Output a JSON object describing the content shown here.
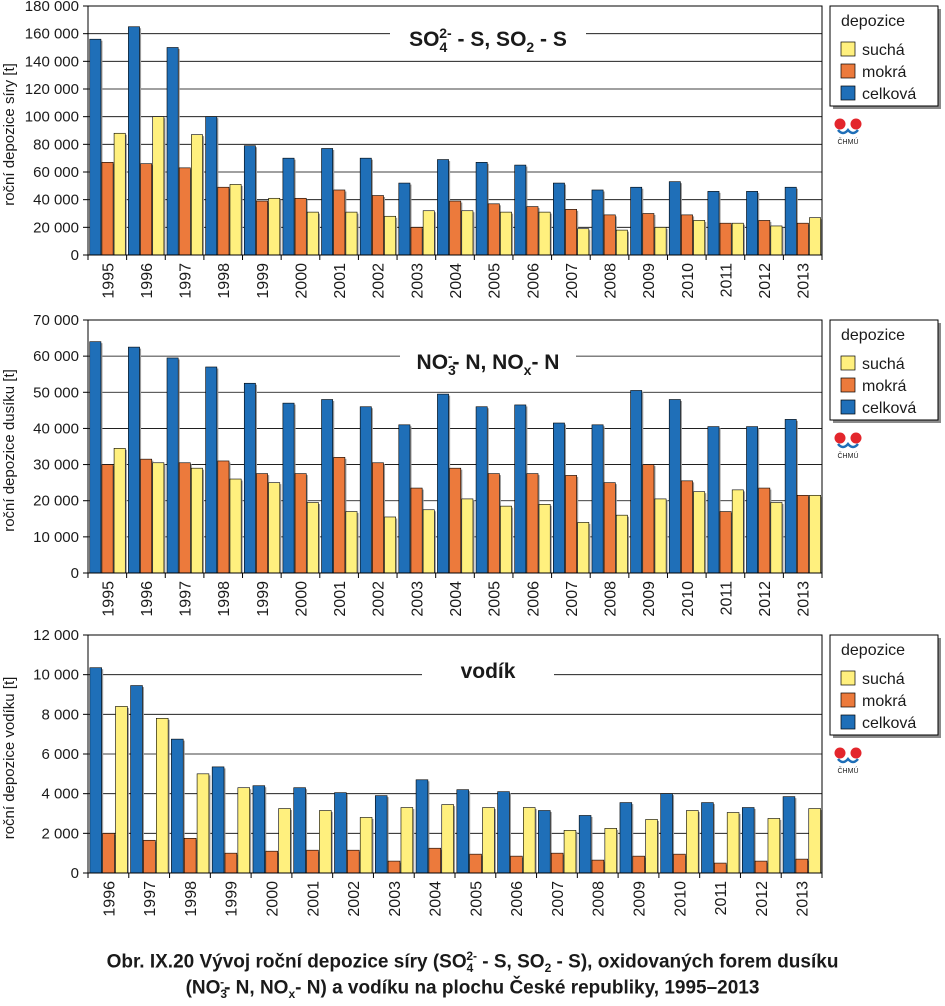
{
  "chart_data": [
    {
      "type": "bar",
      "title_main": "SO",
      "title_sub": "4",
      "title_sup": "2-",
      "title_rest": " - S, SO",
      "title_sub2": "2",
      "title_end": " - S",
      "ylabel": "roční depozice síry [t]",
      "ylim": [
        0,
        180000
      ],
      "yticks": [
        0,
        20000,
        40000,
        60000,
        80000,
        100000,
        120000,
        140000,
        160000,
        180000
      ],
      "ytick_labels": [
        "0",
        "20 000",
        "40 000",
        "60 000",
        "80 000",
        "100 000",
        "120 000",
        "140 000",
        "160 000",
        "180 000"
      ],
      "grid": true,
      "legend_position": "right",
      "legend_title": "depozice",
      "categories": [
        "1995",
        "1996",
        "1997",
        "1998",
        "1999",
        "2000",
        "2001",
        "2002",
        "2003",
        "2004",
        "2005",
        "2006",
        "2007",
        "2008",
        "2009",
        "2010",
        "2011",
        "2012",
        "2013"
      ],
      "series": [
        {
          "name": "celková",
          "color": "#1f6fb8",
          "values": [
            156000,
            165000,
            150000,
            100000,
            79000,
            70000,
            77000,
            70000,
            52000,
            69000,
            67000,
            65000,
            52000,
            47000,
            49000,
            53000,
            46000,
            46000,
            49000
          ]
        },
        {
          "name": "mokrá",
          "color": "#ec7a3c",
          "values": [
            67000,
            66000,
            63000,
            49000,
            39000,
            41000,
            47000,
            43000,
            20000,
            39000,
            37000,
            35000,
            33000,
            29000,
            30000,
            29000,
            23000,
            25000,
            23000
          ]
        },
        {
          "name": "suchá",
          "color": "#fff07e",
          "values": [
            88000,
            100000,
            87000,
            51000,
            41000,
            31000,
            31000,
            28000,
            32000,
            32000,
            31000,
            31000,
            19000,
            18000,
            20000,
            25000,
            23000,
            21000,
            27000
          ]
        }
      ]
    },
    {
      "type": "bar",
      "title_main": "NO",
      "title_sub": "3",
      "title_sup": "-",
      "title_rest": "- N, NO",
      "title_sub2": "x",
      "title_end": "- N",
      "ylabel": "roční depozice dusíku [t]",
      "ylim": [
        0,
        70000
      ],
      "yticks": [
        0,
        10000,
        20000,
        30000,
        40000,
        50000,
        60000,
        70000
      ],
      "ytick_labels": [
        "0",
        "10 000",
        "20 000",
        "30 000",
        "40 000",
        "50 000",
        "60 000",
        "70 000"
      ],
      "grid": true,
      "legend_position": "right",
      "legend_title": "depozice",
      "categories": [
        "1995",
        "1996",
        "1997",
        "1998",
        "1999",
        "2000",
        "2001",
        "2002",
        "2003",
        "2004",
        "2005",
        "2006",
        "2007",
        "2008",
        "2009",
        "2010",
        "2011",
        "2012",
        "2013"
      ],
      "series": [
        {
          "name": "celková",
          "color": "#1f6fb8",
          "values": [
            64000,
            62500,
            59500,
            57000,
            52500,
            47000,
            48000,
            46000,
            41000,
            49500,
            46000,
            46500,
            41500,
            41000,
            50500,
            48000,
            40500,
            40500,
            42500
          ]
        },
        {
          "name": "mokrá",
          "color": "#ec7a3c",
          "values": [
            30000,
            31500,
            30500,
            31000,
            27500,
            27500,
            32000,
            30500,
            23500,
            29000,
            27500,
            27500,
            27000,
            25000,
            30000,
            25500,
            17000,
            23500,
            21500
          ]
        },
        {
          "name": "suchá",
          "color": "#fff07e",
          "values": [
            34500,
            30500,
            29000,
            26000,
            25000,
            19500,
            17000,
            15500,
            17500,
            20500,
            18500,
            19000,
            14000,
            16000,
            20500,
            22500,
            23000,
            19500,
            21500
          ]
        }
      ]
    },
    {
      "type": "bar",
      "title_main": "vodík",
      "ylabel": "roční depozice vodíku [t]",
      "ylim": [
        0,
        12000
      ],
      "yticks": [
        0,
        2000,
        4000,
        6000,
        8000,
        10000,
        12000
      ],
      "ytick_labels": [
        "0",
        "2 000",
        "4 000",
        "6 000",
        "8 000",
        "10 000",
        "12 000"
      ],
      "grid": true,
      "legend_position": "right",
      "legend_title": "depozice",
      "categories": [
        "1996",
        "1997",
        "1998",
        "1999",
        "2000",
        "2001",
        "2002",
        "2003",
        "2004",
        "2005",
        "2006",
        "2007",
        "2008",
        "2009",
        "2010",
        "2011",
        "2012",
        "2013"
      ],
      "series": [
        {
          "name": "celková",
          "color": "#1f6fb8",
          "values": [
            10350,
            9450,
            6750,
            5350,
            4400,
            4300,
            4050,
            3900,
            4700,
            4200,
            4100,
            3150,
            2900,
            3550,
            4000,
            3550,
            3300,
            3850
          ]
        },
        {
          "name": "mokrá",
          "color": "#ec7a3c",
          "values": [
            2000,
            1650,
            1750,
            1000,
            1100,
            1150,
            1150,
            600,
            1250,
            950,
            850,
            1000,
            650,
            850,
            950,
            500,
            600,
            700
          ]
        },
        {
          "name": "suchá",
          "color": "#fff07e",
          "values": [
            8400,
            7800,
            5000,
            4300,
            3250,
            3150,
            2800,
            3300,
            3450,
            3300,
            3300,
            2150,
            2250,
            2700,
            3150,
            3050,
            2750,
            3250
          ]
        }
      ]
    }
  ],
  "logo_text": "ČHMÚ",
  "caption": {
    "line1_a": "Obr. IX.20  Vývoj roční depozice síry (SO",
    "line1_sub": "4",
    "line1_sup": "2-",
    "line1_b": " - S, SO",
    "line1_sub2": "2",
    "line1_c": " - S), oxidovaných forem dusíku",
    "line2_a": "(NO",
    "line2_sub": "3",
    "line2_sup": "-",
    "line2_b": "- N, NO",
    "line2_sub2": "x",
    "line2_c": "- N) a vodíku na plochu České republiky, 1995–2013"
  }
}
